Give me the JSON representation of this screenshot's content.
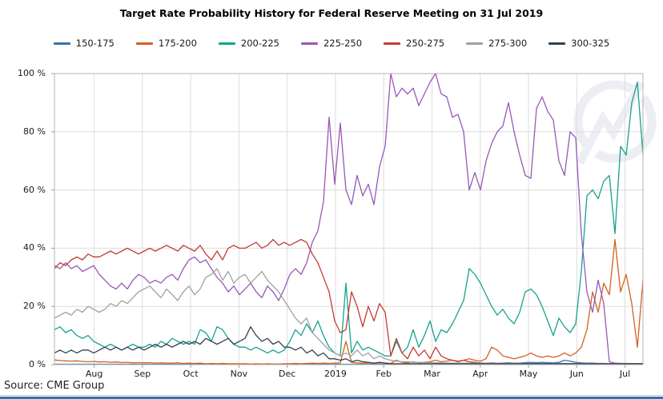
{
  "header": {
    "title": "Target Rate Probability History for Federal Reserve Meeting on 31 Jul 2019"
  },
  "footer": {
    "source": "Source: CME Group"
  },
  "colors": {
    "accent_bar": "#2e74b5",
    "grid": "#dcdcdc",
    "axis_border": "#b3b3b3",
    "watermark": "#dde1ea"
  },
  "chart_data": {
    "type": "line",
    "title": "Target Rate Probability History for Federal Reserve Meeting on 31 Jul 2019",
    "xlabel": "",
    "ylabel": "",
    "ylim": [
      0,
      100
    ],
    "grid": true,
    "legend_position": "top",
    "y_ticks": [
      0,
      20,
      40,
      60,
      80,
      100
    ],
    "y_tick_suffix": " %",
    "x_ticklabels": [
      "Aug",
      "Sep",
      "Oct",
      "Nov",
      "Dec",
      "2019",
      "Feb",
      "Mar",
      "Apr",
      "May",
      "Jun",
      "Jul"
    ],
    "x_range_note": "late Jul 2018 through mid Jul 2019, ~3.5 day sampling (106 points per series)",
    "series": [
      {
        "name": "150-175",
        "color": "#2e75b6",
        "values": [
          0.15,
          0.15,
          0.15,
          0.15,
          0.15,
          0.15,
          0.15,
          0.15,
          0.15,
          0.15,
          0.15,
          0.15,
          0.15,
          0.15,
          0.15,
          0.15,
          0.15,
          0.15,
          0.15,
          0.15,
          0.15,
          0.15,
          0.15,
          0.15,
          0.15,
          0.15,
          0.15,
          0.15,
          0.15,
          0.15,
          0.15,
          0.15,
          0.15,
          0.15,
          0.15,
          0.15,
          0.15,
          0.15,
          0.15,
          0.15,
          0.15,
          0.15,
          0.15,
          0.15,
          0.15,
          0.15,
          0.15,
          0.15,
          0.15,
          0.15,
          0.15,
          0.15,
          0.15,
          0.15,
          0.15,
          0.15,
          0.15,
          0.15,
          0.15,
          0.15,
          0.15,
          0.15,
          0.15,
          0.15,
          0.15,
          0.15,
          0.15,
          0.15,
          0.15,
          0.15,
          0.15,
          0.15,
          0.15,
          0.15,
          0.15,
          0.15,
          0.5,
          0.5,
          0.6,
          0.5,
          0.5,
          0.6,
          0.5,
          0.5,
          0.7,
          0.8,
          0.7,
          0.8,
          0.7,
          0.6,
          0.8,
          1.5,
          1.2,
          0.8,
          0.6,
          0.5,
          0.5,
          0.4,
          0.4,
          0.3,
          0.3,
          0.3,
          0.3,
          0.3,
          0.3,
          0.3
        ]
      },
      {
        "name": "175-200",
        "color": "#d4611f",
        "values": [
          1.6,
          1.4,
          1.3,
          1.2,
          1.3,
          1.1,
          1.0,
          1.1,
          0.9,
          1.0,
          0.8,
          0.9,
          0.7,
          0.8,
          0.6,
          0.7,
          0.6,
          0.7,
          0.5,
          0.6,
          0.5,
          0.5,
          0.6,
          0.4,
          0.5,
          0.4,
          0.5,
          0.3,
          0.4,
          0.3,
          0.4,
          0.3,
          0.3,
          0.3,
          0.3,
          0.2,
          0.3,
          0.2,
          0.3,
          0.2,
          0.2,
          0.3,
          0.3,
          0.4,
          0.3,
          0.4,
          0.5,
          0.4,
          0.5,
          0.4,
          0.5,
          0.6,
          8,
          0.8,
          0.6,
          0.5,
          0.6,
          0.5,
          0.6,
          0.5,
          0.4,
          1.5,
          0.8,
          0.6,
          1,
          0.6,
          0.8,
          1,
          1.5,
          1,
          1.2,
          1.5,
          1.2,
          1.5,
          2,
          1.5,
          1.2,
          2,
          6,
          5,
          3,
          2.5,
          2,
          2.5,
          3,
          4,
          3,
          2.5,
          3,
          2.5,
          3,
          4,
          3,
          4,
          6,
          12,
          25,
          18,
          28,
          24,
          43,
          25,
          31,
          21,
          6,
          29
        ]
      },
      {
        "name": "200-225",
        "color": "#15a28d",
        "values": [
          12,
          13,
          11,
          12,
          10,
          9,
          10,
          8,
          7,
          6,
          7,
          6,
          5,
          6,
          7,
          6,
          6,
          7,
          6,
          8,
          7,
          9,
          8,
          7,
          8,
          7,
          12,
          11,
          8,
          13,
          12,
          9,
          7,
          6,
          6,
          5,
          6,
          5,
          4,
          5,
          4,
          5,
          8,
          12,
          10,
          14,
          11,
          15,
          10,
          6,
          4,
          3,
          28,
          4,
          8,
          5,
          6,
          5,
          4,
          3,
          3,
          8,
          4,
          6,
          12,
          6,
          10,
          15,
          8,
          12,
          11,
          14,
          18,
          22,
          33,
          31,
          28,
          24,
          20,
          17,
          19,
          16,
          14,
          18,
          25,
          26,
          24,
          20,
          15,
          10,
          16,
          13,
          11,
          14,
          32,
          58,
          60,
          57,
          63,
          65,
          45,
          75,
          72,
          90,
          97,
          72
        ]
      },
      {
        "name": "225-250",
        "color": "#9857b8",
        "values": [
          34,
          33,
          35,
          33,
          34,
          32,
          33,
          34,
          31,
          29,
          27,
          26,
          28,
          26,
          29,
          31,
          30,
          28,
          29,
          28,
          30,
          31,
          29,
          33,
          36,
          37,
          35,
          36,
          33,
          30,
          28,
          25,
          27,
          24,
          26,
          28,
          25,
          23,
          27,
          25,
          22,
          26,
          31,
          33,
          31,
          35,
          42,
          46,
          56,
          85,
          62,
          83,
          60,
          55,
          65,
          58,
          62,
          55,
          68,
          75,
          100,
          92,
          95,
          93,
          95,
          89,
          93,
          97,
          100,
          93,
          92,
          85,
          86,
          80,
          60,
          66,
          60,
          70,
          76,
          80,
          82,
          90,
          80,
          72,
          65,
          64,
          88,
          92,
          87,
          84,
          70,
          65,
          80,
          78,
          45,
          25,
          18,
          29,
          21,
          1,
          0.5,
          0.4,
          0.4,
          0.3,
          0.3,
          0.3
        ]
      },
      {
        "name": "250-275",
        "color": "#c23b33",
        "values": [
          33,
          35,
          34,
          36,
          37,
          36,
          38,
          37,
          37,
          38,
          39,
          38,
          39,
          40,
          39,
          38,
          39,
          40,
          39,
          40,
          41,
          40,
          39,
          41,
          40,
          39,
          41,
          38,
          36,
          39,
          36,
          40,
          41,
          40,
          40,
          41,
          42,
          40,
          41,
          43,
          41,
          42,
          41,
          42,
          43,
          42,
          38,
          35,
          30,
          25,
          15,
          11,
          12,
          25,
          20,
          13,
          20,
          15,
          21,
          18,
          3,
          9,
          4,
          2,
          6,
          3,
          5,
          2,
          6,
          3,
          2,
          1.5,
          1,
          1.5,
          1,
          0.8,
          0.6,
          0.5,
          0.5,
          0.4,
          0.4,
          0.4,
          0.3,
          0.3,
          0.3,
          0.3,
          0.3,
          0.3,
          0.3,
          0.3,
          0.3,
          0.3,
          0.3,
          0.3,
          0.3,
          0.3,
          0.3,
          0.3,
          0.3,
          0.3,
          0.3,
          0.3,
          0.3,
          0.3,
          0.3,
          0.3
        ]
      },
      {
        "name": "275-300",
        "color": "#a0a0a0",
        "values": [
          16,
          17,
          18,
          17,
          19,
          18,
          20,
          19,
          18,
          19,
          21,
          20,
          22,
          21,
          23,
          25,
          26,
          27,
          25,
          23,
          26,
          24,
          22,
          25,
          27,
          24,
          26,
          30,
          31,
          33,
          29,
          32,
          28,
          30,
          31,
          28,
          30,
          32,
          29,
          27,
          25,
          22,
          19,
          16,
          14,
          16,
          11,
          9,
          7,
          5,
          4,
          3,
          4,
          3,
          5,
          3,
          4,
          2,
          3,
          2,
          1.5,
          1.2,
          1,
          1,
          0.8,
          0.8,
          0.7,
          0.7,
          0.6,
          0.6,
          0.5,
          0.5,
          0.5,
          0.5,
          0.5,
          0.5,
          0.5,
          0.5,
          0.5,
          0.5,
          0.4,
          0.4,
          0.4,
          0.4,
          0.4,
          0.4,
          0.4,
          0.4,
          0.4,
          0.4,
          0.4,
          0.4,
          0.4,
          0.4,
          0.4,
          0.4,
          0.3,
          0.3,
          0.3,
          0.3,
          0.3,
          0.3,
          0.3,
          0.3,
          0.3,
          0.3
        ]
      },
      {
        "name": "300-325",
        "color": "#31414f",
        "values": [
          4,
          5,
          4,
          5,
          4,
          5,
          5,
          4,
          5,
          6,
          5,
          6,
          5,
          6,
          5,
          6,
          5,
          6,
          7,
          6,
          7,
          6,
          7,
          8,
          7,
          8,
          7,
          9,
          8,
          7,
          8,
          9,
          7,
          8,
          9,
          13,
          10,
          8,
          9,
          7,
          8,
          6,
          6,
          5,
          6,
          4,
          5,
          3,
          4,
          2,
          2,
          1.5,
          2,
          1,
          1.5,
          1,
          0.8,
          0.5,
          0.8,
          0.5,
          0.3,
          0.3,
          0.3,
          0.3,
          0.3,
          0.3,
          0.3,
          0.3,
          0.3,
          0.3,
          0.3,
          0.3,
          0.3,
          0.3,
          0.3,
          0.3,
          0.3,
          0.3,
          0.3,
          0.3,
          0.3,
          0.3,
          0.3,
          0.3,
          0.3,
          0.3,
          0.3,
          0.3,
          0.3,
          0.3,
          0.3,
          0.3,
          0.3,
          0.3,
          0.3,
          0.3,
          0.3,
          0.3,
          0.3,
          0.3,
          0.3,
          0.3,
          0.3,
          0.3,
          0.3,
          0.3
        ]
      }
    ]
  }
}
